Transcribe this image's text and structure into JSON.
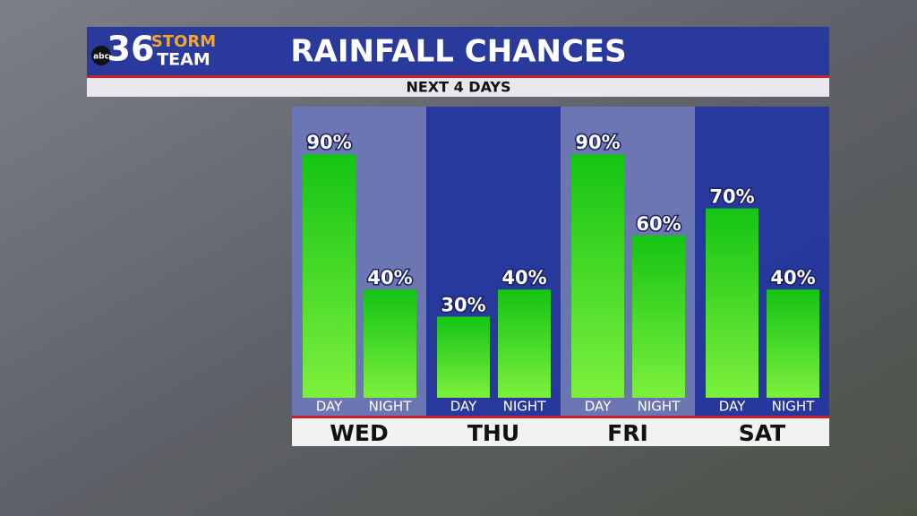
{
  "logo": {
    "network": "abc",
    "number": "36",
    "line1": "STORM",
    "line2": "TEAM"
  },
  "chart_data": {
    "type": "bar",
    "title": "RAINFALL CHANCES",
    "subtitle": "NEXT 4 DAYS",
    "categories": [
      "WED",
      "THU",
      "FRI",
      "SAT"
    ],
    "series": [
      {
        "name": "DAY",
        "color": "#2ccc22",
        "values": [
          90,
          30,
          90,
          70
        ],
        "value_labels": [
          "90%",
          "30%",
          "90%",
          "70%"
        ]
      },
      {
        "name": "NIGHT",
        "color": "#2ccc22",
        "values": [
          40,
          40,
          60,
          40
        ],
        "value_labels": [
          "40%",
          "40%",
          "60%",
          "40%"
        ]
      }
    ]
  }
}
